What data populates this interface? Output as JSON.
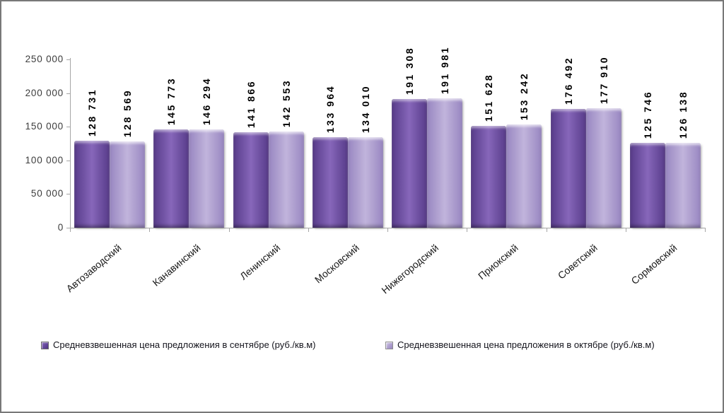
{
  "window": {
    "background_color": "#ffffff",
    "border_color": "#787878"
  },
  "chart_data": {
    "type": "bar",
    "title": "",
    "xlabel": "",
    "ylabel": "",
    "categories": [
      "Автозаводский",
      "Канавинский",
      "Ленинский",
      "Московский",
      "Нижегородский",
      "Приокский",
      "Советский",
      "Сормовский"
    ],
    "series": [
      {
        "name": "Средневзвешенная цена предложения в сентябре (руб./кв.м)",
        "color_main": "#7b5cae",
        "color_edge": "#573b89",
        "values": [
          128731,
          145773,
          141866,
          133964,
          191308,
          151628,
          176492,
          125746
        ],
        "value_labels": [
          "128 731",
          "145 773",
          "141 866",
          "133 964",
          "191 308",
          "151 628",
          "176 492",
          "125 746"
        ]
      },
      {
        "name": "Средневзвешенная цена предложения в октябре (руб./кв.м)",
        "color_main": "#b7a9d5",
        "color_edge": "#9886c1",
        "values": [
          128569,
          146294,
          142553,
          134010,
          191981,
          153242,
          177910,
          126138
        ],
        "value_labels": [
          "128 569",
          "146 294",
          "142 553",
          "134 010",
          "191 981",
          "153 242",
          "177 910",
          "126 138"
        ]
      }
    ],
    "ylim": [
      0,
      250000
    ],
    "ytick_step": 50000,
    "ytick_labels": [
      "0",
      "50 000",
      "100 000",
      "150 000",
      "200 000",
      "250 000"
    ],
    "grid": false,
    "legend_position": "bottom",
    "bar_value_labels_rotated": true,
    "category_labels_rotated_deg": -40,
    "axis_color": "#a6a6a6",
    "value_label_color": "#000000",
    "tick_label_color": "#3c3c3c"
  }
}
